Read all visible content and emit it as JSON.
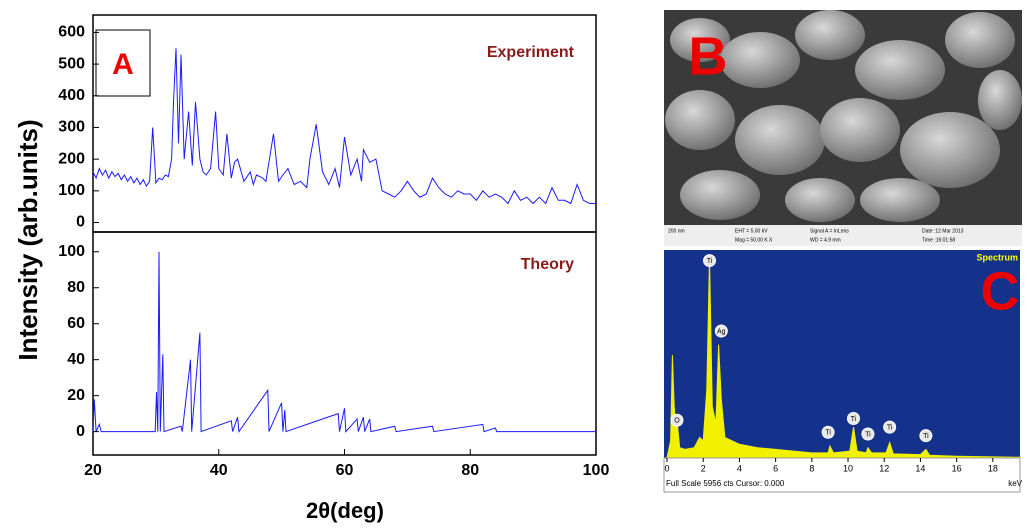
{
  "figure": {
    "ylabel": "Intensity (arb.units)",
    "xlabel": "2θ(deg)",
    "panel_a": "A",
    "panel_b": "B",
    "panel_c": "C"
  },
  "sem_image": {
    "scale": "200 nm",
    "eht": "EHT = 5.00 kV",
    "mag": "Mag = 50.00 K X",
    "signal": "Signal A = InLens",
    "wd": "WD = 4.9 mm",
    "date": "Date :12 Mar 2013",
    "time": "Time :16:01:58"
  },
  "chart_data": [
    {
      "type": "line",
      "label": "Experiment",
      "color": "#1a1aff",
      "x": [
        20,
        20.5,
        21,
        21.5,
        22,
        22.5,
        23,
        23.5,
        24,
        24.5,
        25,
        25.5,
        26,
        26.5,
        27,
        27.5,
        28,
        28.5,
        29,
        29.5,
        30,
        30.5,
        31,
        31.5,
        32,
        32.5,
        32.8,
        33.2,
        33.6,
        34,
        34.5,
        35.2,
        35.8,
        36.3,
        37,
        37.5,
        38,
        38.7,
        39.5,
        40,
        40.7,
        41.3,
        42,
        42.5,
        43,
        44,
        45,
        45.5,
        46,
        47,
        47.5,
        48.7,
        49.5,
        50.2,
        51,
        52,
        53,
        54,
        54.5,
        55.5,
        56.5,
        57.5,
        58.5,
        59.2,
        60,
        61,
        62,
        62.7,
        63,
        64,
        65,
        66,
        67,
        68,
        69,
        70,
        71,
        72,
        73,
        74,
        75,
        76,
        77,
        78,
        79,
        80,
        81,
        82,
        83,
        84,
        85,
        86,
        87,
        88,
        89,
        90,
        91,
        92,
        93,
        94,
        95,
        96,
        97,
        98,
        99,
        100
      ],
      "values": [
        160,
        140,
        170,
        150,
        165,
        140,
        160,
        145,
        155,
        135,
        150,
        130,
        145,
        125,
        140,
        120,
        135,
        115,
        130,
        300,
        125,
        140,
        135,
        150,
        145,
        200,
        380,
        550,
        250,
        530,
        200,
        350,
        180,
        380,
        200,
        160,
        150,
        170,
        350,
        170,
        150,
        280,
        140,
        190,
        200,
        130,
        160,
        120,
        150,
        140,
        130,
        280,
        130,
        150,
        170,
        120,
        130,
        110,
        200,
        310,
        160,
        120,
        170,
        110,
        270,
        150,
        200,
        130,
        230,
        190,
        200,
        100,
        90,
        80,
        100,
        130,
        100,
        80,
        90,
        140,
        110,
        90,
        80,
        100,
        90,
        90,
        70,
        100,
        80,
        90,
        80,
        60,
        100,
        70,
        80,
        60,
        80,
        60,
        110,
        70,
        70,
        60,
        120,
        70,
        60,
        60
      ],
      "ylim": [
        -30,
        655
      ],
      "yticks": [
        0,
        100,
        200,
        300,
        400,
        500,
        600
      ],
      "xlim": [
        20,
        100
      ]
    },
    {
      "type": "line",
      "label": "Theory",
      "color": "#1a1aff",
      "x": [
        20,
        20.2,
        20.5,
        21,
        21.3,
        29.9,
        30.1,
        30.3,
        30.5,
        30.7,
        31.1,
        31.3,
        34,
        34.2,
        35.5,
        35.7,
        37,
        37.2,
        42,
        42.2,
        43,
        43.2,
        47.8,
        48,
        50,
        50.2,
        50.5,
        50.7,
        59,
        59.2,
        60,
        60.2,
        62,
        62.2,
        63,
        63.2,
        64,
        64.2,
        68,
        68.2,
        74,
        74.2,
        82,
        82.2,
        84,
        84.2,
        100
      ],
      "values": [
        0,
        18,
        0,
        4,
        0,
        0,
        22,
        0,
        100,
        0,
        43,
        0,
        3,
        0,
        40,
        0,
        55,
        0,
        6,
        0,
        8,
        0,
        23,
        0,
        16,
        0,
        12,
        0,
        10,
        0,
        13,
        0,
        7,
        0,
        8,
        0,
        7,
        0,
        3,
        0,
        3,
        0,
        4,
        0,
        2,
        0,
        0
      ],
      "ylim": [
        -13,
        111
      ],
      "yticks": [
        0,
        20,
        40,
        60,
        80,
        100
      ],
      "xlim": [
        20,
        100
      ],
      "xticks": [
        20,
        40,
        60,
        80,
        100
      ]
    },
    {
      "type": "area",
      "label": "Spectrum",
      "color": "#f0f000",
      "background": "#14328c",
      "x": [
        0,
        0.2,
        0.3,
        0.4,
        0.5,
        0.55,
        0.7,
        1,
        1.5,
        1.8,
        2,
        2.2,
        2.35,
        2.5,
        2.7,
        2.85,
        3,
        3.2,
        4,
        5,
        6,
        7,
        8,
        8.9,
        9,
        9.2,
        10.1,
        10.3,
        10.5,
        11,
        11.1,
        11.3,
        12.1,
        12.3,
        12.5,
        14,
        14.3,
        14.5,
        16,
        19.5
      ],
      "values": [
        0,
        500,
        3000,
        1500,
        800,
        1100,
        300,
        250,
        300,
        600,
        500,
        2000,
        5800,
        1500,
        1000,
        3300,
        1700,
        600,
        400,
        300,
        250,
        200,
        150,
        150,
        350,
        150,
        200,
        900,
        200,
        150,
        300,
        150,
        150,
        450,
        120,
        100,
        250,
        80,
        50,
        20
      ],
      "ylim": [
        0,
        6000
      ],
      "xlim": [
        0,
        19.5
      ],
      "xticks": [
        0,
        2,
        4,
        6,
        8,
        10,
        12,
        14,
        16,
        18
      ],
      "xunit": "keV",
      "footer": "Full Scale 5956 cts Cursor: 0.000",
      "annotations": [
        {
          "text": "O",
          "x": 0.55,
          "y": 1100
        },
        {
          "text": "Ti",
          "x": 2.35,
          "y": 5750
        },
        {
          "text": "Ag",
          "x": 3.0,
          "y": 3700
        },
        {
          "text": "Ti",
          "x": 8.9,
          "y": 750
        },
        {
          "text": "Ti",
          "x": 10.3,
          "y": 1150
        },
        {
          "text": "Ti",
          "x": 11.1,
          "y": 700
        },
        {
          "text": "Ti",
          "x": 12.3,
          "y": 900
        },
        {
          "text": "Ti",
          "x": 14.3,
          "y": 650
        }
      ]
    }
  ]
}
